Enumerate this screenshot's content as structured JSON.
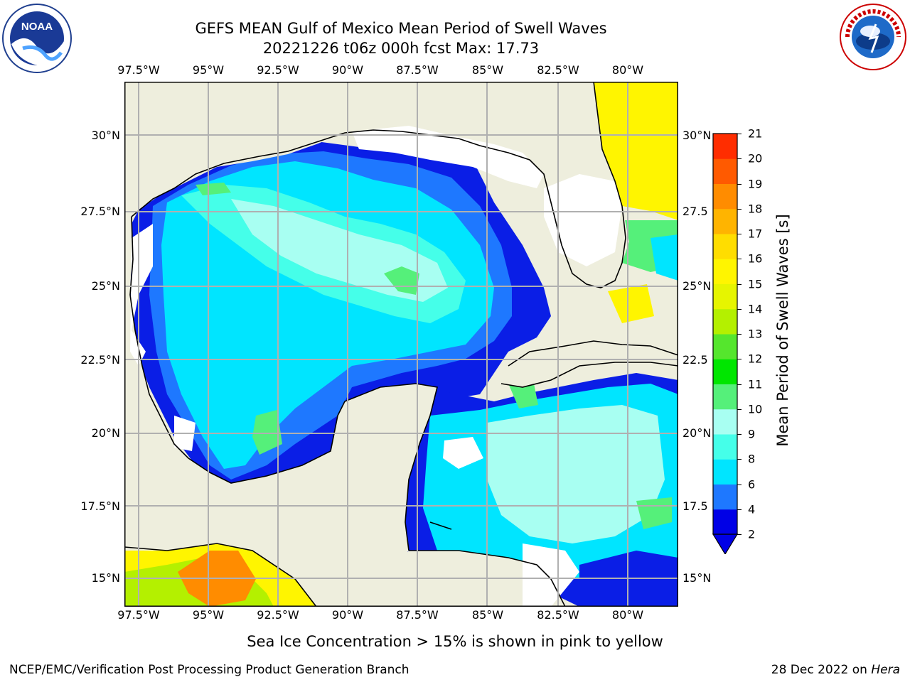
{
  "title_line1": "GEFS MEAN Gulf of Mexico Mean Period of Swell Waves",
  "title_line2": "20221226 t06z 000h fcst   Max: 17.73",
  "lon_labels": [
    "97.5°W",
    "95°W",
    "92.5°W",
    "90°W",
    "87.5°W",
    "85°W",
    "82.5°W",
    "80°W"
  ],
  "lat_labels_left": [
    "30°N",
    "27.5°N",
    "25°N",
    "22.5°N",
    "20°N",
    "17.5°N",
    "15°N"
  ],
  "lat_labels_right": [
    "30°N",
    "27.5",
    "25°N",
    "22.5",
    "20°N",
    "17.5",
    "15°N"
  ],
  "colorbar": {
    "label": "Mean Period of Swell Waves [s]",
    "ticks": [
      "2",
      "4",
      "6",
      "8",
      "9",
      "10",
      "11",
      "12",
      "13",
      "14",
      "15",
      "16",
      "17",
      "18",
      "19",
      "20",
      "21"
    ],
    "levels": [
      2,
      4,
      6,
      8,
      9,
      10,
      11,
      12,
      13,
      14,
      15,
      16,
      17,
      18,
      19,
      20,
      21
    ],
    "colors": [
      "#0000e6",
      "#1e78ff",
      "#00e5ff",
      "#45ffe9",
      "#a8fff2",
      "#55f07a",
      "#00e600",
      "#55e62d",
      "#b4f000",
      "#e6f500",
      "#fff500",
      "#ffdd00",
      "#ffb400",
      "#ff8c00",
      "#ff5a00",
      "#ff2d00",
      "#ff0000"
    ],
    "under_color": "#0000e6"
  },
  "sea_ice_note": "Sea Ice Concentration > 15% is shown in pink to yellow",
  "footer_left": "NCEP/EMC/Verification Post Processing Product Generation Branch",
  "footer_right_prefix": "28 Dec 2022 on ",
  "footer_right_host": "Hera",
  "colors": {
    "land": "#eeeedd",
    "grid": "#b0b0b0",
    "coast": "#000000"
  }
}
